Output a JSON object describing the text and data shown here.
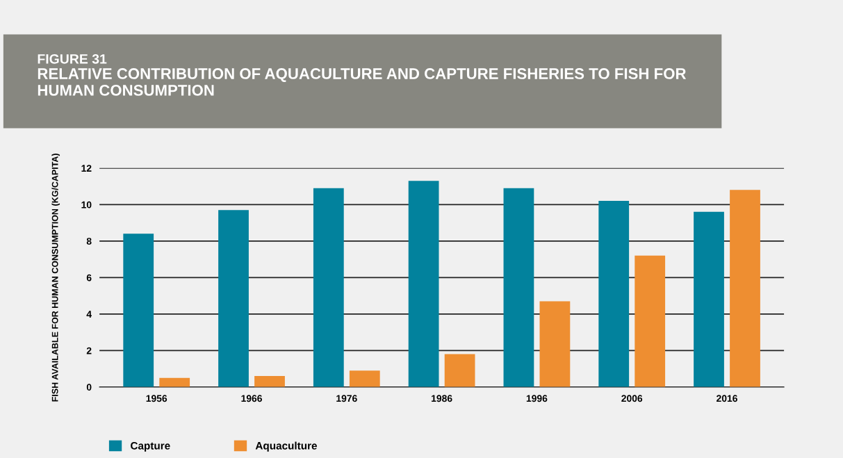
{
  "chart_data": {
    "type": "bar",
    "title": "FIGURE 31",
    "subtitle": "RELATIVE CONTRIBUTION OF AQUACULTURE AND CAPTURE FISHERIES TO FISH FOR HUMAN CONSUMPTION",
    "ylabel": "FISH AVAILABLE FOR HUMAN CONSUMPTION (KG/CAPITA)",
    "categories": [
      "1956",
      "1966",
      "1976",
      "1986",
      "1996",
      "2006",
      "2016"
    ],
    "series": [
      {
        "name": "Capture",
        "color": "#02829d",
        "values": [
          8.4,
          9.7,
          10.9,
          11.3,
          10.9,
          10.2,
          9.6
        ]
      },
      {
        "name": "Aquaculture",
        "color": "#ee8e31",
        "values": [
          0.5,
          0.6,
          0.9,
          1.8,
          4.7,
          7.2,
          10.8
        ]
      }
    ],
    "ylim": [
      0,
      12
    ],
    "yticks": [
      0,
      2,
      4,
      6,
      8,
      10,
      12
    ],
    "grid": "y",
    "legend": "bottom left"
  }
}
